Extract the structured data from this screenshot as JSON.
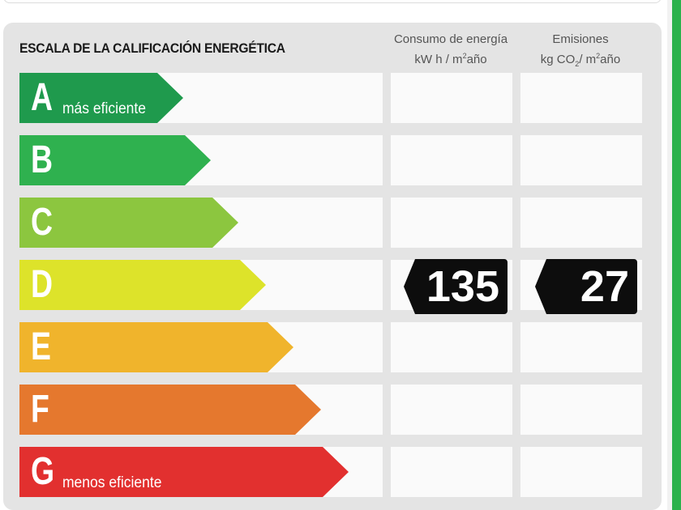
{
  "title": "ESCALA DE LA CALIFICACIÓN ENERGÉTICA",
  "columns": {
    "consumo": {
      "line1": "Consumo de energía",
      "unit_a": "kW h / m",
      "unit_sup": "2",
      "unit_b": "año"
    },
    "emisiones": {
      "line1": "Emisiones",
      "unit_a": "kg CO",
      "unit_sub": "2",
      "unit_c": "/ m",
      "unit_sup": "2",
      "unit_b": "año"
    }
  },
  "ratings": [
    {
      "letter": "A",
      "label": "más eficiente",
      "color": "#1f9a4d"
    },
    {
      "letter": "B",
      "label": "",
      "color": "#2fb14f"
    },
    {
      "letter": "C",
      "label": "",
      "color": "#8cc63f"
    },
    {
      "letter": "D",
      "label": "",
      "color": "#dde32a"
    },
    {
      "letter": "E",
      "label": "",
      "color": "#f0b42c"
    },
    {
      "letter": "F",
      "label": "",
      "color": "#e5782e"
    },
    {
      "letter": "G",
      "label": "menos eficiente",
      "color": "#e2302f"
    }
  ],
  "result": {
    "rating": "D",
    "consumo_value": "135",
    "emisiones_value": "27"
  },
  "colors": {
    "panel": "#e4e4e4",
    "cell": "#fafafa",
    "badge": "#0d0d0d",
    "side_bar": "#2bb24c"
  }
}
